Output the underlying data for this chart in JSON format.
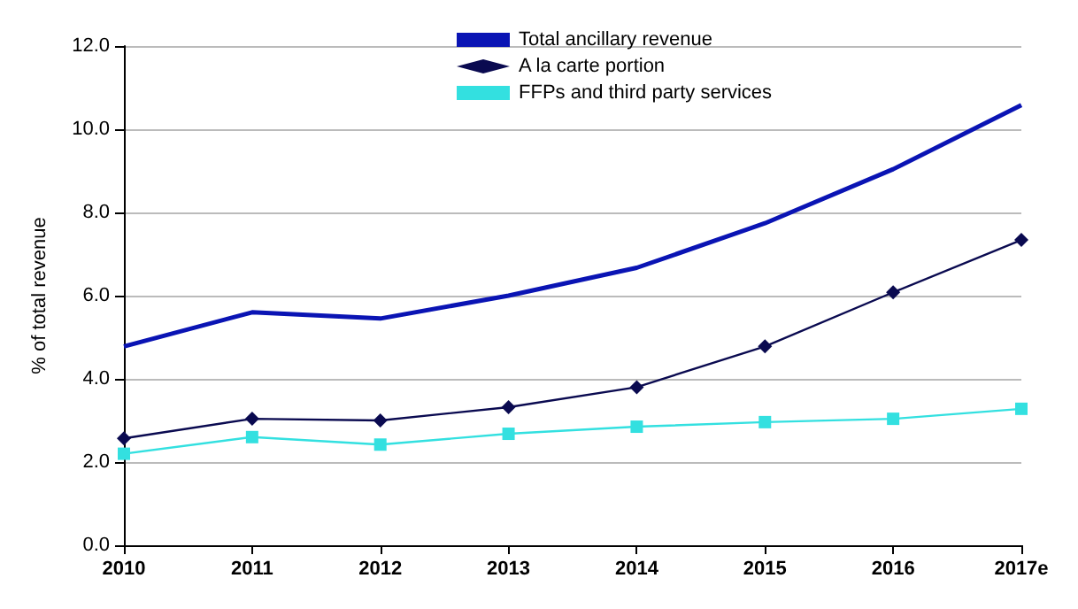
{
  "chart_data": {
    "type": "line",
    "ylabel": "% of total revenue",
    "categories": [
      "2010",
      "2011",
      "2012",
      "2013",
      "2014",
      "2015",
      "2016",
      "2017e"
    ],
    "series": [
      {
        "name": "Total ancillary revenue",
        "color": "#0a14b4",
        "marker": "none",
        "values": [
          4.78,
          5.6,
          5.45,
          6.0,
          6.67,
          7.74,
          9.04,
          10.58
        ]
      },
      {
        "name": "A la carte portion",
        "color": "#0a0a50",
        "marker": "diamond",
        "values": [
          2.57,
          3.04,
          3.0,
          3.32,
          3.8,
          4.78,
          6.08,
          7.34
        ]
      },
      {
        "name": "FFPs and third party services",
        "color": "#33e0e0",
        "marker": "square",
        "values": [
          2.2,
          2.6,
          2.42,
          2.68,
          2.85,
          2.96,
          3.04,
          3.28
        ]
      }
    ],
    "ylim": [
      0,
      12
    ],
    "yticks": [
      {
        "value": 0,
        "label": "0.0"
      },
      {
        "value": 2,
        "label": "2.0"
      },
      {
        "value": 4,
        "label": "4.0"
      },
      {
        "value": 6,
        "label": "6.0"
      },
      {
        "value": 8,
        "label": "8.0"
      },
      {
        "value": 10,
        "label": "10.0"
      },
      {
        "value": 12,
        "label": "12.0"
      }
    ],
    "grid": "y",
    "legend": "top",
    "line_style": "solid"
  }
}
